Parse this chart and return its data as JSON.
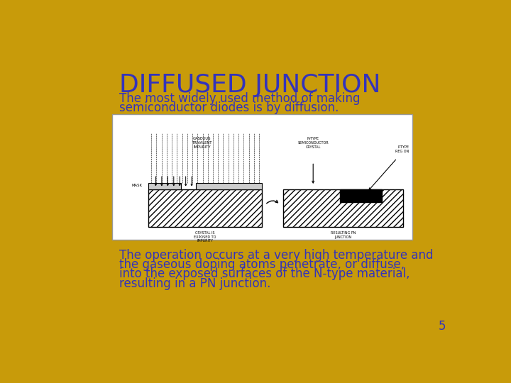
{
  "background_color": "#C89B0A",
  "title": "DIFFUSED JUNCTION",
  "title_color": "#3333BB",
  "title_fontsize": 26,
  "subtitle_line1": "The most widely used method of making",
  "subtitle_line2": "semiconductor diodes is by diffusion.",
  "subtitle_color": "#3333BB",
  "subtitle_fontsize": 12,
  "body_line1": "The operation occurs at a very high temperature and",
  "body_line2": "the gaseous doping atoms penetrate, or diffuse,",
  "body_line3": "into the exposed surfaces of the N-type material,",
  "body_line4": "resulting in a PN junction.",
  "body_text_color": "#3333BB",
  "body_fontsize": 12,
  "page_number": "5",
  "page_number_color": "#3333BB",
  "diagram_bg": "#FFFFFF"
}
